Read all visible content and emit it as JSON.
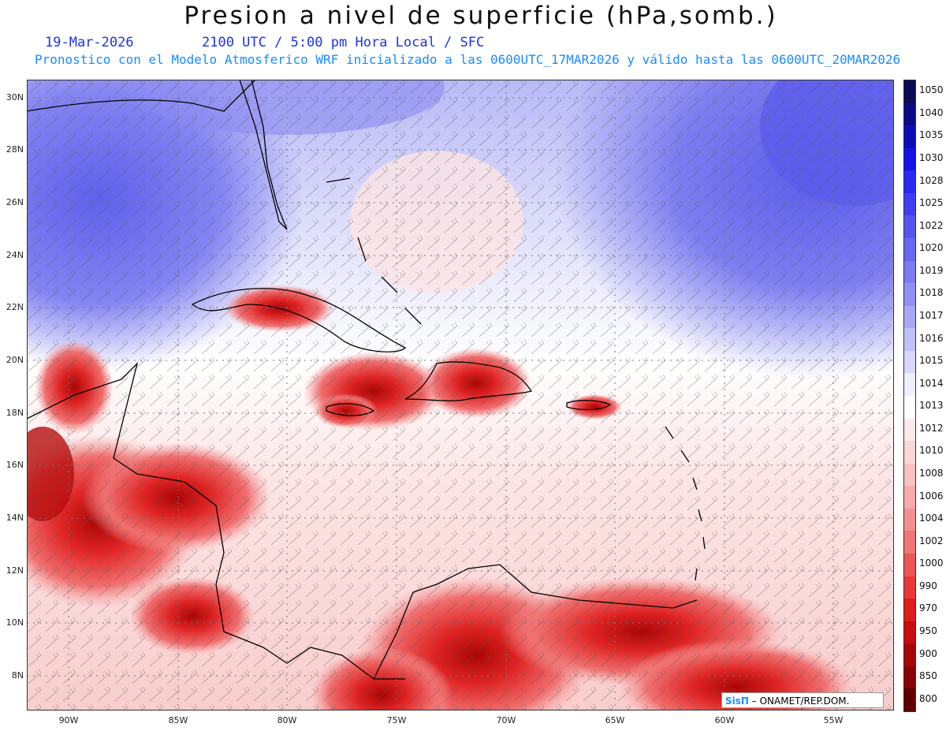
{
  "header": {
    "title": "Presion a nivel de superficie (hPa,somb.)",
    "date": "19-Mar-2026",
    "valid_time": "2100 UTC / 5:00 pm Hora Local / SFC",
    "model_line": "Pronostico con el Modelo Atmosferico WRF inicializado a las 0600UTC_17MAR2026 y válido hasta las  0600UTC_20MAR2026"
  },
  "axes": {
    "lat_labels": [
      "30N",
      "28N",
      "26N",
      "24N",
      "22N",
      "20N",
      "18N",
      "16N",
      "14N",
      "12N",
      "10N",
      "8N"
    ],
    "lon_labels": [
      "90W",
      "85W",
      "80W",
      "75W",
      "70W",
      "65W",
      "60W",
      "55W"
    ]
  },
  "colorbar": {
    "levels": [
      "1050",
      "1040",
      "1035",
      "1030",
      "1028",
      "1025",
      "1022",
      "1020",
      "1019",
      "1018",
      "1017",
      "1016",
      "1015",
      "1014",
      "1013",
      "1012",
      "1010",
      "1008",
      "1006",
      "1004",
      "1002",
      "1000",
      "990",
      "970",
      "950",
      "900",
      "850",
      "800"
    ],
    "colors": [
      "#0a0a55",
      "#0b0b8a",
      "#0d0db8",
      "#1212e6",
      "#2a2af5",
      "#3f3ff2",
      "#5555ee",
      "#6767ef",
      "#7c7cf1",
      "#9090f3",
      "#a8a8f6",
      "#c0c0f8",
      "#d8d8fb",
      "#eeeefd",
      "#ffffff",
      "#fde8e8",
      "#fbd6d6",
      "#f8c2c2",
      "#f6aaaa",
      "#f39090",
      "#f07575",
      "#ec5656",
      "#e83838",
      "#dd1c1c",
      "#c70d0d",
      "#a80606",
      "#880303",
      "#5e0000"
    ]
  },
  "credit": {
    "logo": "SisΠ",
    "text": " – ONAMET/REP.DOM."
  }
}
